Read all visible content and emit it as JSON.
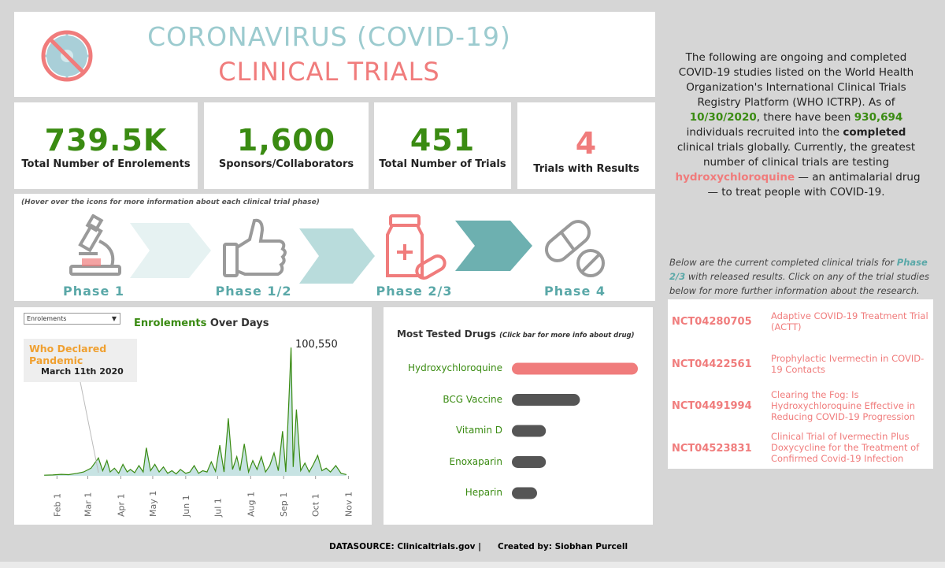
{
  "header": {
    "title_line1": "CORONAVIRUS (COVID-19)",
    "title_line2": "CLINICAL TRIALS"
  },
  "kpis": [
    {
      "value": "739.5K",
      "label": "Total Number of Enrolements",
      "color": "#3a8b12"
    },
    {
      "value": "1,600",
      "label": "Sponsors/Collaborators",
      "color": "#3a8b12"
    },
    {
      "value": "451",
      "label": "Total Number of Trials",
      "color": "#3a8b12"
    },
    {
      "value": "4",
      "label": "Trials with Results",
      "color": "#f07c7c"
    }
  ],
  "phases": {
    "note": "(Hover over the icons for more information about each clinical trial phase)",
    "labels": [
      "Phase 1",
      "Phase 1/2",
      "Phase 2/3",
      "Phase 4"
    ],
    "icons": [
      "microscope-icon",
      "thumbs-up-icon",
      "medicine-bottle-icon",
      "pill-icon"
    ]
  },
  "info": {
    "p1": "The following are ongoing and completed COVID-19 studies listed on the World Health Organization's International Clinical Trials Registry Platform (WHO ICTRP). As of",
    "date": "10/30/2020",
    "p2": ", there have been",
    "count": "930,694",
    "p3": "individuals recruited into the",
    "completed": "completed",
    "p4": "clinical trials globally. Currently, the greatest number of clinical trials are testing",
    "drug": "hydroxychloroquine",
    "p5": "— an antimalarial drug — to treat people with COVID-19."
  },
  "below": {
    "p1": "Below are the current completed clinical trials for",
    "phase": "Phase 2/3",
    "p2": "with released results. Click on any of the trial studies below for more further information about the research."
  },
  "trials": [
    {
      "id": "NCT04280705",
      "name": "Adaptive COVID-19 Treatment Trial (ACTT)"
    },
    {
      "id": "NCT04422561",
      "name": "Prophylactic Ivermectin in COVID-19 Contacts"
    },
    {
      "id": "NCT04491994",
      "name": "Clearing the Fog: Is Hydroxychloroquine Effective in Reducing COVID-19 Progression"
    },
    {
      "id": "NCT04523831",
      "name": "Clinical Trial of Ivermectin Plus Doxycycline for the Treatment of Confirmed Covid-19 Infection"
    }
  ],
  "enrol_chart": {
    "dropdown": "Enrolements",
    "title_green": "Enrolements",
    "title_rest": " Over Days",
    "annotation_title": "Who Declared Pandemic",
    "annotation_date": "March 11th 2020",
    "peak_label": "100,550"
  },
  "drugs_chart": {
    "title": "Most Tested Drugs",
    "subtitle": "(Click bar for more info about drug)"
  },
  "footer": {
    "datasource": "DATASOURCE: Clinicaltrials.gov  |",
    "created": "Created by: Siobhan Purcell"
  },
  "colors": {
    "green": "#3a8b12",
    "coral": "#f07c7c",
    "teal": "#5aa8a8",
    "dark_bar": "#555555"
  },
  "chart_data": [
    {
      "type": "area",
      "title": "Enrolements Over Days",
      "x_ticks": [
        "Feb 1",
        "Mar 1",
        "Apr 1",
        "May 1",
        "Jun 1",
        "Jul 1",
        "Aug 1",
        "Sep 1",
        "Oct 1",
        "Nov 1"
      ],
      "x": [
        "2020-01-20",
        "2020-01-28",
        "2020-02-05",
        "2020-02-12",
        "2020-02-20",
        "2020-02-26",
        "2020-03-04",
        "2020-03-11",
        "2020-03-15",
        "2020-03-19",
        "2020-03-22",
        "2020-03-26",
        "2020-03-30",
        "2020-04-03",
        "2020-04-07",
        "2020-04-10",
        "2020-04-14",
        "2020-04-18",
        "2020-04-22",
        "2020-04-25",
        "2020-04-29",
        "2020-05-03",
        "2020-05-07",
        "2020-05-11",
        "2020-05-15",
        "2020-05-19",
        "2020-05-23",
        "2020-05-27",
        "2020-06-01",
        "2020-06-05",
        "2020-06-09",
        "2020-06-13",
        "2020-06-17",
        "2020-06-21",
        "2020-06-25",
        "2020-06-29",
        "2020-07-03",
        "2020-07-07",
        "2020-07-11",
        "2020-07-15",
        "2020-07-19",
        "2020-07-22",
        "2020-07-26",
        "2020-07-30",
        "2020-08-03",
        "2020-08-07",
        "2020-08-11",
        "2020-08-15",
        "2020-08-19",
        "2020-08-23",
        "2020-08-27",
        "2020-08-31",
        "2020-09-03",
        "2020-09-06",
        "2020-09-08",
        "2020-09-10",
        "2020-09-13",
        "2020-09-17",
        "2020-09-21",
        "2020-09-25",
        "2020-09-29",
        "2020-10-03",
        "2020-10-07",
        "2020-10-11",
        "2020-10-15",
        "2020-10-20",
        "2020-10-25",
        "2020-10-30"
      ],
      "values": [
        500,
        700,
        1200,
        900,
        2000,
        3000,
        6000,
        14000,
        4000,
        12000,
        3000,
        6000,
        2000,
        9000,
        3000,
        5000,
        2500,
        8000,
        3000,
        22000,
        4000,
        9000,
        3000,
        7000,
        2000,
        4000,
        1500,
        5000,
        2000,
        3000,
        8000,
        2000,
        4000,
        3000,
        11000,
        3500,
        24000,
        3000,
        45000,
        5000,
        15000,
        4000,
        25000,
        3000,
        12000,
        5000,
        15000,
        3000,
        8000,
        18000,
        4000,
        35000,
        3000,
        60000,
        100550,
        7000,
        52000,
        4000,
        10000,
        3000,
        9000,
        16000,
        4000,
        6000,
        3000,
        8000,
        2000,
        1000
      ],
      "ylim": [
        0,
        105000
      ],
      "annotations": [
        {
          "date": "2020-03-11",
          "text": "Who Declared Pandemic March 11th 2020"
        },
        {
          "date": "2020-09-08",
          "text": "100,550"
        }
      ]
    },
    {
      "type": "bar",
      "title": "Most Tested Drugs",
      "categories": [
        "Hydroxychloroquine",
        "BCG Vaccine",
        "Vitamin D",
        "Enoxaparin",
        "Heparin"
      ],
      "values": [
        100,
        54,
        27,
        27,
        20
      ],
      "highlight_color": "#f07c7c",
      "bar_color": "#555555"
    }
  ]
}
